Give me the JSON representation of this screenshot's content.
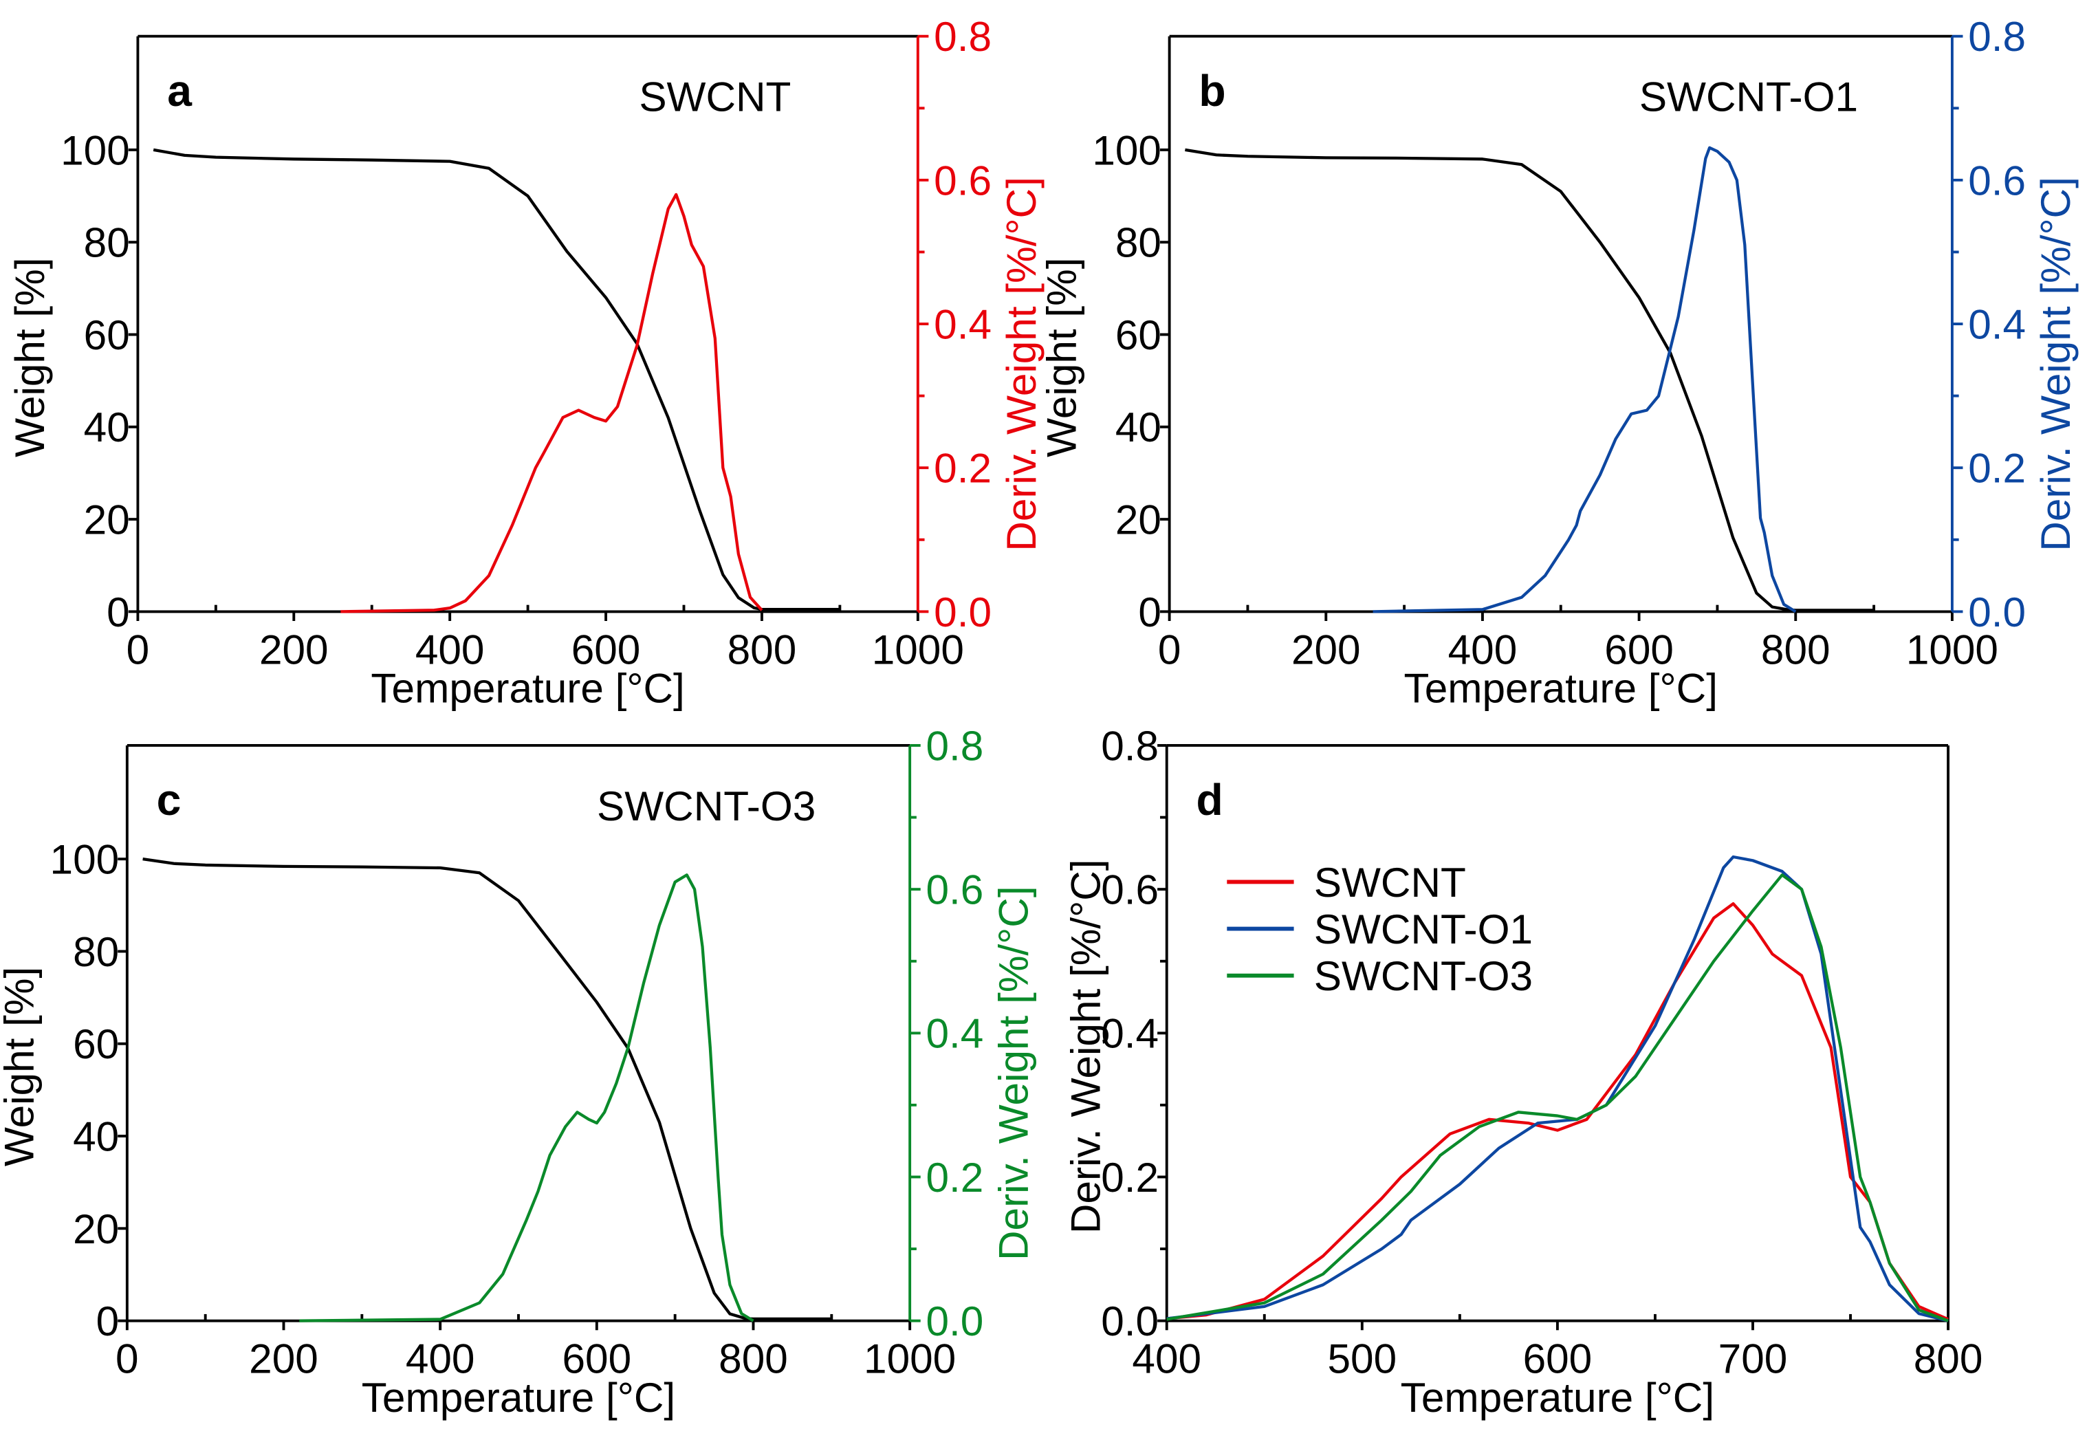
{
  "chart_data": [
    {
      "type": "line",
      "panel_label": "a",
      "title": "SWCNT",
      "xlabel": "Temperature [°C]",
      "ylabel": "Weight [%]",
      "y2label": "Deriv. Weight [%/°C]",
      "xlim": [
        0,
        1000
      ],
      "xticks": [
        "0",
        "200",
        "400",
        "600",
        "800",
        "1000"
      ],
      "ylim": [
        0,
        124.6
      ],
      "yticks": [
        "0",
        "20",
        "40",
        "60",
        "80",
        "100"
      ],
      "y2lim": [
        0,
        0.8
      ],
      "y2ticks": [
        "0.0",
        "0.2",
        "0.4",
        "0.6",
        "0.8"
      ],
      "accent": "#e8000b",
      "series": [
        {
          "name": "Weight",
          "axis": "left",
          "color": "#000000",
          "x": [
            20,
            60,
            100,
            200,
            300,
            400,
            450,
            500,
            550,
            600,
            640,
            680,
            720,
            750,
            770,
            790,
            800,
            900
          ],
          "y": [
            100,
            98.8,
            98.4,
            98,
            97.8,
            97.5,
            96,
            90,
            78,
            68,
            58,
            42,
            22,
            8,
            3,
            0.8,
            0.5,
            0.5
          ]
        },
        {
          "name": "Deriv. Weight",
          "axis": "right",
          "color": "#e8000b",
          "x": [
            260,
            380,
            400,
            420,
            450,
            480,
            510,
            520,
            545,
            565,
            585,
            600,
            615,
            640,
            660,
            680,
            690,
            700,
            710,
            725,
            740,
            750,
            760,
            770,
            785,
            800
          ],
          "y": [
            0,
            0.002,
            0.005,
            0.015,
            0.05,
            0.12,
            0.2,
            0.22,
            0.27,
            0.28,
            0.27,
            0.265,
            0.285,
            0.37,
            0.47,
            0.56,
            0.58,
            0.55,
            0.51,
            0.48,
            0.38,
            0.2,
            0.16,
            0.08,
            0.02,
            0.002
          ]
        }
      ]
    },
    {
      "type": "line",
      "panel_label": "b",
      "title": "SWCNT-O1",
      "xlabel": "Temperature [°C]",
      "ylabel": "Weight [%]",
      "y2label": "Deriv. Weight [%/°C]",
      "xlim": [
        0,
        1000
      ],
      "xticks": [
        "0",
        "200",
        "400",
        "600",
        "800",
        "1000"
      ],
      "ylim": [
        0,
        124.6
      ],
      "yticks": [
        "0",
        "20",
        "40",
        "60",
        "80",
        "100"
      ],
      "y2lim": [
        0,
        0.8
      ],
      "y2ticks": [
        "0.0",
        "0.2",
        "0.4",
        "0.6",
        "0.8"
      ],
      "accent": "#0d47a1",
      "series": [
        {
          "name": "Weight",
          "axis": "left",
          "color": "#000000",
          "x": [
            20,
            60,
            100,
            200,
            300,
            400,
            450,
            500,
            550,
            600,
            640,
            680,
            720,
            750,
            770,
            790,
            800,
            900
          ],
          "y": [
            100,
            98.9,
            98.6,
            98.3,
            98.2,
            98,
            96.8,
            91,
            80,
            68,
            56,
            38,
            16,
            4,
            1,
            0.4,
            0.3,
            0.3
          ]
        },
        {
          "name": "Deriv. Weight",
          "axis": "right",
          "color": "#0d47a1",
          "x": [
            260,
            400,
            450,
            480,
            510,
            520,
            525,
            550,
            570,
            590,
            610,
            625,
            650,
            670,
            685,
            690,
            700,
            715,
            725,
            735,
            745,
            755,
            760,
            770,
            785,
            800
          ],
          "y": [
            0,
            0.003,
            0.02,
            0.05,
            0.1,
            0.12,
            0.14,
            0.19,
            0.24,
            0.275,
            0.28,
            0.3,
            0.41,
            0.53,
            0.63,
            0.645,
            0.64,
            0.625,
            0.6,
            0.51,
            0.32,
            0.13,
            0.11,
            0.05,
            0.01,
            0
          ]
        }
      ]
    },
    {
      "type": "line",
      "panel_label": "c",
      "title": "SWCNT-O3",
      "xlabel": "Temperature [°C]",
      "ylabel": "Weight [%]",
      "y2label": "Deriv. Weight [%/°C]",
      "xlim": [
        0,
        1000
      ],
      "xticks": [
        "0",
        "200",
        "400",
        "600",
        "800",
        "1000"
      ],
      "ylim": [
        0,
        124.6
      ],
      "yticks": [
        "0",
        "20",
        "40",
        "60",
        "80",
        "100"
      ],
      "y2lim": [
        0,
        0.8
      ],
      "y2ticks": [
        "0.0",
        "0.2",
        "0.4",
        "0.6",
        "0.8"
      ],
      "accent": "#0a8a2a",
      "series": [
        {
          "name": "Weight",
          "axis": "left",
          "color": "#000000",
          "x": [
            20,
            60,
            100,
            200,
            300,
            400,
            450,
            500,
            550,
            600,
            640,
            680,
            720,
            750,
            770,
            790,
            800,
            900
          ],
          "y": [
            100,
            99,
            98.7,
            98.4,
            98.3,
            98.1,
            97,
            91,
            80,
            69,
            59,
            43,
            20,
            6,
            1.5,
            0.5,
            0.4,
            0.4
          ]
        },
        {
          "name": "Deriv. Weight",
          "axis": "right",
          "color": "#0a8a2a",
          "x": [
            220,
            400,
            450,
            480,
            510,
            525,
            540,
            560,
            575,
            590,
            600,
            610,
            625,
            640,
            660,
            680,
            700,
            715,
            725,
            735,
            745,
            755,
            760,
            770,
            785,
            800
          ],
          "y": [
            0,
            0.002,
            0.025,
            0.065,
            0.14,
            0.18,
            0.23,
            0.27,
            0.29,
            0.28,
            0.275,
            0.29,
            0.33,
            0.38,
            0.47,
            0.55,
            0.61,
            0.62,
            0.6,
            0.52,
            0.38,
            0.2,
            0.12,
            0.05,
            0.01,
            0
          ]
        }
      ]
    },
    {
      "type": "line",
      "panel_label": "d",
      "title": "",
      "xlabel": "Temperature [°C]",
      "ylabel": "Deriv. Weight [%/°C]",
      "xlim": [
        400,
        800
      ],
      "xticks": [
        "400",
        "500",
        "600",
        "700",
        "800"
      ],
      "ylim": [
        0,
        0.8
      ],
      "yticks": [
        "0.0",
        "0.2",
        "0.4",
        "0.6",
        "0.8"
      ],
      "legend_position": "upper-left",
      "series": [
        {
          "name": "SWCNT",
          "color": "#e8000b",
          "x": [
            400,
            420,
            450,
            480,
            510,
            520,
            545,
            565,
            585,
            600,
            615,
            640,
            660,
            680,
            690,
            700,
            710,
            725,
            740,
            750,
            760,
            770,
            785,
            800
          ],
          "y": [
            0.003,
            0.008,
            0.03,
            0.09,
            0.17,
            0.2,
            0.26,
            0.28,
            0.275,
            0.265,
            0.28,
            0.37,
            0.47,
            0.56,
            0.58,
            0.55,
            0.51,
            0.48,
            0.38,
            0.2,
            0.165,
            0.08,
            0.02,
            0.002
          ]
        },
        {
          "name": "SWCNT-O1",
          "color": "#0d47a1",
          "x": [
            400,
            450,
            480,
            510,
            520,
            525,
            550,
            570,
            590,
            610,
            625,
            650,
            670,
            685,
            690,
            700,
            715,
            725,
            735,
            745,
            755,
            760,
            770,
            785,
            800
          ],
          "y": [
            0.003,
            0.02,
            0.05,
            0.1,
            0.12,
            0.14,
            0.19,
            0.24,
            0.275,
            0.28,
            0.3,
            0.41,
            0.53,
            0.63,
            0.645,
            0.64,
            0.625,
            0.6,
            0.51,
            0.32,
            0.13,
            0.11,
            0.05,
            0.01,
            0
          ]
        },
        {
          "name": "SWCNT-O3",
          "color": "#0a8a2a",
          "x": [
            400,
            450,
            480,
            510,
            525,
            540,
            560,
            580,
            600,
            610,
            625,
            640,
            660,
            680,
            700,
            715,
            725,
            735,
            745,
            755,
            760,
            770,
            785,
            800
          ],
          "y": [
            0.002,
            0.025,
            0.065,
            0.14,
            0.18,
            0.23,
            0.27,
            0.29,
            0.285,
            0.28,
            0.3,
            0.34,
            0.42,
            0.5,
            0.57,
            0.62,
            0.6,
            0.52,
            0.38,
            0.2,
            0.165,
            0.08,
            0.015,
            0
          ]
        }
      ]
    }
  ]
}
